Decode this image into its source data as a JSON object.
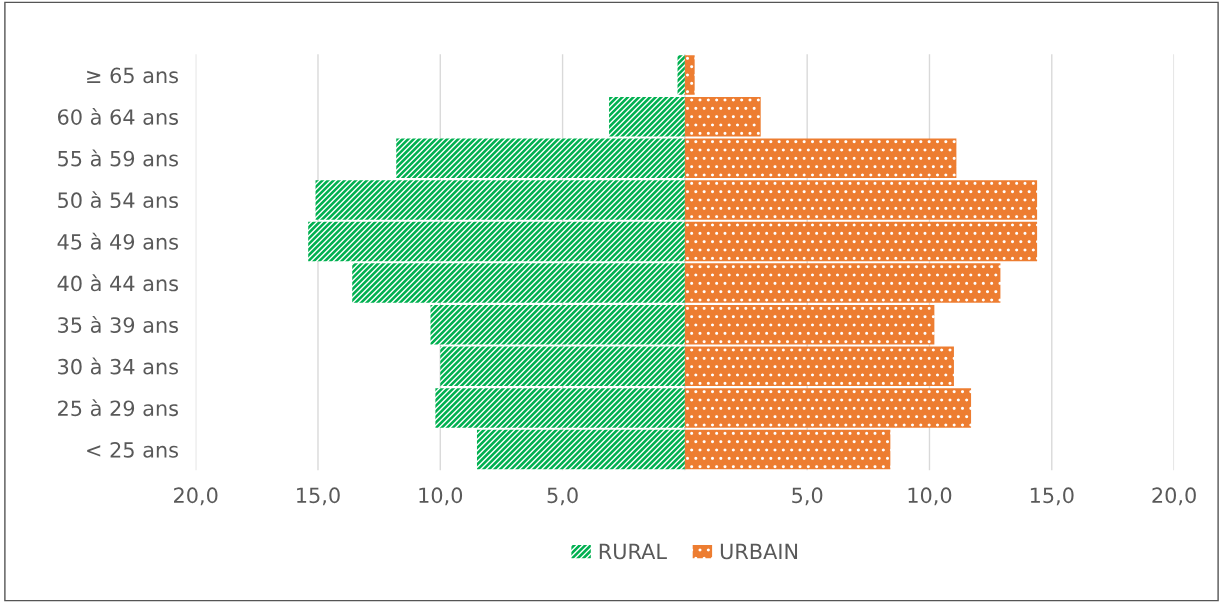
{
  "chart_data": {
    "type": "bar",
    "orientation": "horizontal",
    "categories": [
      "≥ 65 ans",
      "60 à 64 ans",
      "55 à 59 ans",
      "50 à 54 ans",
      "45 à 49 ans",
      "40 à 44 ans",
      "35 à 39 ans",
      "30 à 34 ans",
      "25 à 29 ans",
      "< 25 ans"
    ],
    "series": [
      {
        "name": "RURAL",
        "color": "#00b050",
        "values": [
          -0.3,
          -3.1,
          -11.8,
          -15.1,
          -15.4,
          -13.6,
          -10.4,
          -10.0,
          -10.2,
          -8.5
        ]
      },
      {
        "name": "URBAIN",
        "color": "#ed7d31",
        "values": [
          0.4,
          3.1,
          11.1,
          14.4,
          14.4,
          12.9,
          10.2,
          11.0,
          11.7,
          8.4
        ]
      }
    ],
    "xlim": [
      -20,
      20
    ],
    "xticks": [
      {
        "value": -20,
        "label": "20,0"
      },
      {
        "value": -15,
        "label": "15,0"
      },
      {
        "value": -10,
        "label": "10,0"
      },
      {
        "value": -5,
        "label": "5,0"
      },
      {
        "value": 0,
        "label": null
      },
      {
        "value": 5,
        "label": "5,0"
      },
      {
        "value": 10,
        "label": "10,0"
      },
      {
        "value": 15,
        "label": "15,0"
      },
      {
        "value": 20,
        "label": "20,0"
      }
    ],
    "grid": "x",
    "legend": "bottom",
    "stacked": true
  }
}
